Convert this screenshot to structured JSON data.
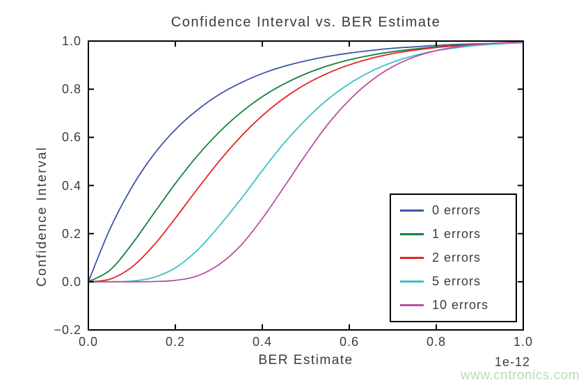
{
  "watermark": {
    "text": "www.cntronics.com",
    "color": "#b5dcb5"
  },
  "chart_data": {
    "type": "line",
    "title": "Confidence Interval vs. BER Estimate",
    "xlabel": "BER Estimate",
    "ylabel": "Confidence Interval",
    "x_offset_label": "1e-12",
    "xlim": [
      0.0,
      1.0
    ],
    "ylim": [
      -0.2,
      1.0
    ],
    "x_ticks": [
      0.0,
      0.2,
      0.4,
      0.6,
      0.8,
      1.0
    ],
    "x_tick_labels": [
      "0.0",
      "0.2",
      "0.4",
      "0.6",
      "0.8",
      "1.0"
    ],
    "y_ticks": [
      1.0,
      0.8,
      0.6,
      0.4,
      0.2,
      0.0,
      -0.2
    ],
    "y_tick_labels": [
      "1.0",
      "0.8",
      "0.6",
      "0.4",
      "0.2",
      "0.0",
      "−0.2"
    ],
    "grid": false,
    "legend_position": "lower right",
    "x": [
      0,
      0.05,
      0.1,
      0.15,
      0.2,
      0.25,
      0.3,
      0.35,
      0.4,
      0.45,
      0.5,
      0.55,
      0.6,
      0.65,
      0.7,
      0.75,
      0.8,
      0.85,
      0.9,
      0.95,
      1.0
    ],
    "series": [
      {
        "name": "0 errors",
        "color": "#3b56a5",
        "values": [
          0,
          0.221,
          0.393,
          0.528,
          0.632,
          0.713,
          0.777,
          0.826,
          0.865,
          0.895,
          0.918,
          0.936,
          0.95,
          0.961,
          0.97,
          0.976,
          0.982,
          0.986,
          0.989,
          0.991,
          0.993
        ]
      },
      {
        "name": "1 errors",
        "color": "#15803d",
        "values": [
          0,
          0.049,
          0.156,
          0.283,
          0.408,
          0.522,
          0.62,
          0.702,
          0.769,
          0.822,
          0.864,
          0.897,
          0.922,
          0.941,
          0.956,
          0.967,
          0.976,
          0.982,
          0.987,
          0.99,
          0.993
        ]
      },
      {
        "name": "2 errors",
        "color": "#e32421",
        "values": [
          0,
          0.011,
          0.061,
          0.151,
          0.264,
          0.384,
          0.499,
          0.602,
          0.69,
          0.763,
          0.821,
          0.866,
          0.901,
          0.928,
          0.948,
          0.962,
          0.973,
          0.981,
          0.986,
          0.99,
          0.993
        ]
      },
      {
        "name": "5 errors",
        "color": "#3cbfc8",
        "values": [
          0,
          0.0,
          0.003,
          0.018,
          0.058,
          0.13,
          0.23,
          0.342,
          0.462,
          0.576,
          0.674,
          0.757,
          0.823,
          0.874,
          0.912,
          0.94,
          0.96,
          0.973,
          0.983,
          0.989,
          0.993
        ]
      },
      {
        "name": "10 errors",
        "color": "#b8509f",
        "values": [
          0,
          0.0,
          0.0,
          0.001,
          0.006,
          0.024,
          0.071,
          0.15,
          0.263,
          0.394,
          0.528,
          0.653,
          0.755,
          0.835,
          0.894,
          0.934,
          0.96,
          0.977,
          0.987,
          0.993,
          0.996
        ]
      }
    ]
  }
}
